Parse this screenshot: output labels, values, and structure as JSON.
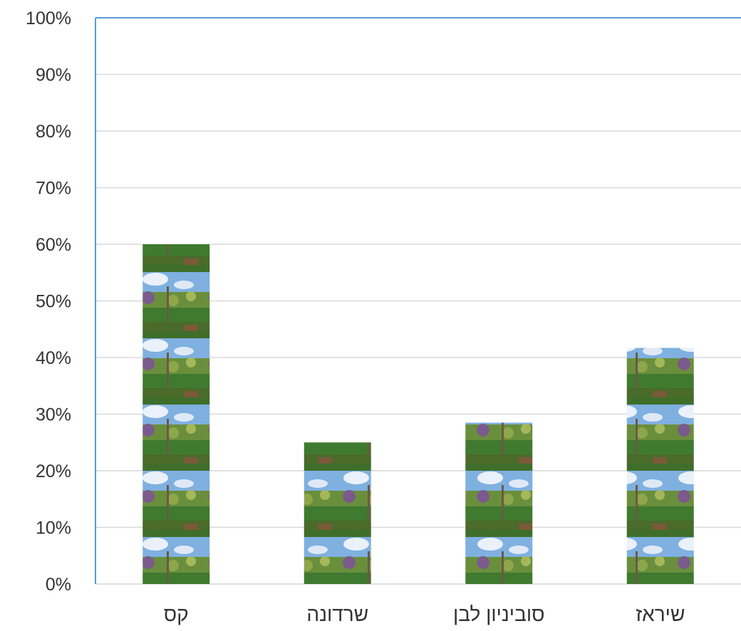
{
  "chart_data": {
    "type": "bar",
    "categories": [
      "קס",
      "שרדונה",
      "סוביניון לבן",
      "שיראז"
    ],
    "values": [
      60,
      25,
      28.5,
      41.7
    ],
    "ylim": [
      0,
      100
    ],
    "y_ticks": [
      "0%",
      "10%",
      "20%",
      "30%",
      "40%",
      "50%",
      "60%",
      "70%",
      "80%",
      "90%",
      "100%"
    ],
    "y_tick_values": [
      0,
      10,
      20,
      30,
      40,
      50,
      60,
      70,
      80,
      90,
      100
    ],
    "grid": true,
    "bar_fill": "stacked vineyard photo tiles (blue sky, green vines)",
    "colors": {
      "gridline": "#d9d9d9",
      "plot_border": "#5b9bd5",
      "sky": "#7fb0e0",
      "foliage": "#4f7a34",
      "ground": "#3e6b2c"
    }
  }
}
